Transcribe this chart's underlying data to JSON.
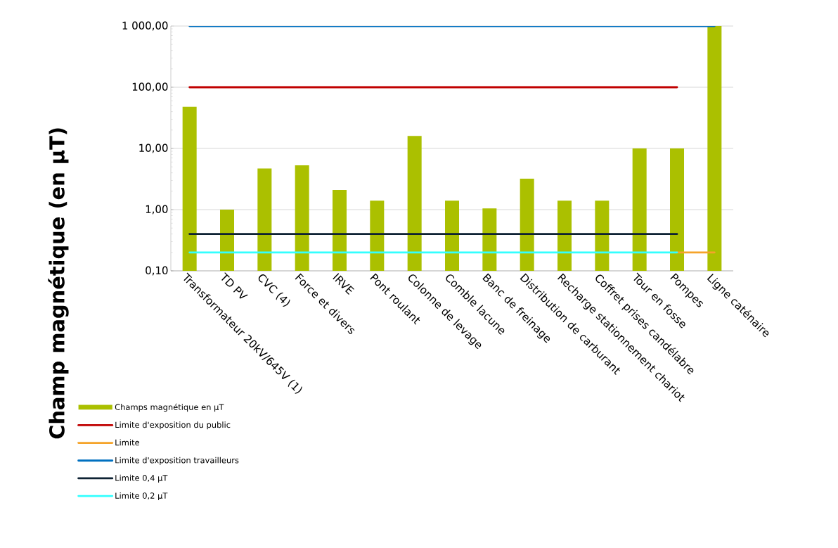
{
  "chart_data": {
    "type": "bar",
    "ylabel": "Champ magnétique (en µT)",
    "categories": [
      "Transformateur 20kV/645V (1)",
      "TD PV",
      "CVC (4)",
      "Force et divers",
      "IRVE",
      "Pont roulant",
      "Colonne de levage",
      "Comble lacune",
      "Banc de freinage",
      "Distribution de carburant",
      "Recharge stationnement chariot",
      "Coffret prises candélabre",
      "Tour en fosse",
      "Pompes",
      "Ligne caténaire"
    ],
    "series": [
      {
        "name": "Champs magnétique en µT",
        "color": "#abc000",
        "values": [
          48,
          1.0,
          4.7,
          5.3,
          2.1,
          1.4,
          16,
          1.4,
          1.05,
          3.2,
          1.4,
          1.4,
          10,
          10,
          1000
        ]
      },
      {
        "name": "Limite d'exposition du public",
        "type": "line",
        "color": "#c00000",
        "values": [
          100,
          100,
          100,
          100,
          100,
          100,
          100,
          100,
          100,
          100,
          100,
          100,
          100,
          100,
          null
        ]
      },
      {
        "name": "Limite",
        "type": "line",
        "color": "#f5a42a",
        "values": [
          null,
          null,
          null,
          null,
          null,
          null,
          null,
          null,
          null,
          null,
          null,
          null,
          null,
          0.2,
          0.2
        ]
      },
      {
        "name": "Limite d'exposition travailleurs",
        "type": "line",
        "color": "#0070c0",
        "values": [
          1000,
          1000,
          1000,
          1000,
          1000,
          1000,
          1000,
          1000,
          1000,
          1000,
          1000,
          1000,
          1000,
          1000,
          1000
        ]
      },
      {
        "name": "Limite 0,4 µT",
        "type": "line",
        "color": "#0e2233",
        "values": [
          0.4,
          0.4,
          0.4,
          0.4,
          0.4,
          0.4,
          0.4,
          0.4,
          0.4,
          0.4,
          0.4,
          0.4,
          0.4,
          0.4,
          null
        ]
      },
      {
        "name": "Limite 0,2 µT",
        "type": "line",
        "color": "#33ffff",
        "values": [
          0.2,
          0.2,
          0.2,
          0.2,
          0.2,
          0.2,
          0.2,
          0.2,
          0.2,
          0.2,
          0.2,
          0.2,
          0.2,
          0.2,
          null
        ]
      }
    ],
    "log": true,
    "ylim": [
      0.1,
      1000
    ],
    "yticks": [
      {
        "value": 0.1,
        "label": "0,10"
      },
      {
        "value": 1,
        "label": "1,00"
      },
      {
        "value": 10,
        "label": "10,00"
      },
      {
        "value": 100,
        "label": "100,00"
      },
      {
        "value": 1000,
        "label": "1 000,00"
      }
    ],
    "grid": "y",
    "legend": "bottom left",
    "line_style": "solid",
    "marker": "none"
  }
}
